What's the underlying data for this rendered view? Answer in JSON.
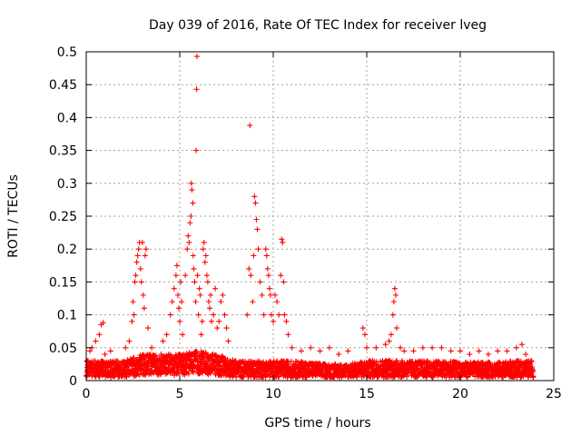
{
  "chart_data": {
    "type": "scatter",
    "title": "Day 039 of 2016, Rate Of TEC Index for receiver lveg",
    "xlabel": "GPS time / hours",
    "ylabel": "ROTI / TECUs",
    "xlim": [
      0,
      25
    ],
    "ylim": [
      0,
      0.5
    ],
    "grid": true,
    "marker": "+",
    "color": "#ff0000",
    "xticks": [
      "0",
      "5",
      "10",
      "15",
      "20",
      "25"
    ],
    "yticks": [
      "0",
      "0.05",
      "0.1",
      "0.15",
      "0.2",
      "0.25",
      "0.3",
      "0.35",
      "0.4",
      "0.45",
      "0.5"
    ],
    "series": [
      {
        "name": "ROTI",
        "points": [
          [
            0.1,
            0.03
          ],
          [
            0.2,
            0.045
          ],
          [
            0.3,
            0.05
          ],
          [
            0.5,
            0.06
          ],
          [
            0.7,
            0.07
          ],
          [
            0.8,
            0.085
          ],
          [
            0.9,
            0.088
          ],
          [
            1.0,
            0.04
          ],
          [
            1.3,
            0.045
          ],
          [
            2.1,
            0.05
          ],
          [
            2.3,
            0.06
          ],
          [
            2.45,
            0.09
          ],
          [
            2.5,
            0.12
          ],
          [
            2.55,
            0.1
          ],
          [
            2.6,
            0.15
          ],
          [
            2.65,
            0.16
          ],
          [
            2.7,
            0.18
          ],
          [
            2.75,
            0.19
          ],
          [
            2.8,
            0.2
          ],
          [
            2.85,
            0.21
          ],
          [
            2.9,
            0.17
          ],
          [
            2.95,
            0.15
          ],
          [
            3.0,
            0.21
          ],
          [
            3.05,
            0.13
          ],
          [
            3.1,
            0.11
          ],
          [
            3.15,
            0.19
          ],
          [
            3.2,
            0.2
          ],
          [
            3.3,
            0.08
          ],
          [
            3.5,
            0.05
          ],
          [
            4.1,
            0.06
          ],
          [
            4.3,
            0.07
          ],
          [
            4.5,
            0.1
          ],
          [
            4.6,
            0.12
          ],
          [
            4.7,
            0.14
          ],
          [
            4.8,
            0.16
          ],
          [
            4.85,
            0.175
          ],
          [
            4.9,
            0.13
          ],
          [
            4.95,
            0.11
          ],
          [
            5.0,
            0.09
          ],
          [
            5.05,
            0.15
          ],
          [
            5.1,
            0.12
          ],
          [
            5.15,
            0.07
          ],
          [
            5.3,
            0.16
          ],
          [
            5.4,
            0.2
          ],
          [
            5.45,
            0.22
          ],
          [
            5.5,
            0.21
          ],
          [
            5.55,
            0.24
          ],
          [
            5.6,
            0.25
          ],
          [
            5.62,
            0.3
          ],
          [
            5.65,
            0.29
          ],
          [
            5.7,
            0.27
          ],
          [
            5.72,
            0.19
          ],
          [
            5.75,
            0.17
          ],
          [
            5.8,
            0.15
          ],
          [
            5.85,
            0.12
          ],
          [
            5.88,
            0.35
          ],
          [
            5.9,
            0.443
          ],
          [
            5.92,
            0.493
          ],
          [
            5.95,
            0.16
          ],
          [
            6.0,
            0.1
          ],
          [
            6.05,
            0.14
          ],
          [
            6.1,
            0.13
          ],
          [
            6.15,
            0.07
          ],
          [
            6.2,
            0.09
          ],
          [
            6.25,
            0.2
          ],
          [
            6.3,
            0.21
          ],
          [
            6.35,
            0.18
          ],
          [
            6.4,
            0.19
          ],
          [
            6.45,
            0.16
          ],
          [
            6.5,
            0.15
          ],
          [
            6.55,
            0.12
          ],
          [
            6.6,
            0.11
          ],
          [
            6.65,
            0.13
          ],
          [
            6.7,
            0.09
          ],
          [
            6.8,
            0.1
          ],
          [
            6.9,
            0.14
          ],
          [
            7.0,
            0.08
          ],
          [
            7.1,
            0.09
          ],
          [
            7.2,
            0.12
          ],
          [
            7.3,
            0.13
          ],
          [
            7.4,
            0.1
          ],
          [
            7.5,
            0.08
          ],
          [
            7.6,
            0.06
          ],
          [
            8.6,
            0.1
          ],
          [
            8.7,
            0.17
          ],
          [
            8.75,
            0.388
          ],
          [
            8.8,
            0.16
          ],
          [
            8.9,
            0.12
          ],
          [
            8.95,
            0.19
          ],
          [
            9.0,
            0.28
          ],
          [
            9.05,
            0.27
          ],
          [
            9.1,
            0.245
          ],
          [
            9.15,
            0.23
          ],
          [
            9.2,
            0.2
          ],
          [
            9.3,
            0.15
          ],
          [
            9.4,
            0.13
          ],
          [
            9.5,
            0.1
          ],
          [
            9.6,
            0.2
          ],
          [
            9.65,
            0.19
          ],
          [
            9.7,
            0.17
          ],
          [
            9.75,
            0.16
          ],
          [
            9.8,
            0.14
          ],
          [
            9.85,
            0.13
          ],
          [
            9.9,
            0.1
          ],
          [
            10.0,
            0.09
          ],
          [
            10.1,
            0.13
          ],
          [
            10.2,
            0.12
          ],
          [
            10.3,
            0.1
          ],
          [
            10.4,
            0.16
          ],
          [
            10.45,
            0.215
          ],
          [
            10.5,
            0.21
          ],
          [
            10.55,
            0.15
          ],
          [
            10.6,
            0.1
          ],
          [
            10.7,
            0.09
          ],
          [
            10.8,
            0.07
          ],
          [
            11.0,
            0.05
          ],
          [
            11.5,
            0.045
          ],
          [
            12.0,
            0.05
          ],
          [
            12.5,
            0.045
          ],
          [
            13.0,
            0.05
          ],
          [
            13.5,
            0.04
          ],
          [
            14.0,
            0.045
          ],
          [
            14.8,
            0.08
          ],
          [
            14.9,
            0.07
          ],
          [
            15.0,
            0.05
          ],
          [
            15.5,
            0.05
          ],
          [
            16.0,
            0.055
          ],
          [
            16.2,
            0.06
          ],
          [
            16.3,
            0.07
          ],
          [
            16.4,
            0.1
          ],
          [
            16.45,
            0.12
          ],
          [
            16.5,
            0.14
          ],
          [
            16.55,
            0.13
          ],
          [
            16.6,
            0.08
          ],
          [
            16.8,
            0.05
          ],
          [
            17.0,
            0.045
          ],
          [
            17.5,
            0.045
          ],
          [
            18.0,
            0.05
          ],
          [
            18.5,
            0.05
          ],
          [
            19.0,
            0.05
          ],
          [
            19.5,
            0.045
          ],
          [
            20.0,
            0.045
          ],
          [
            20.5,
            0.04
          ],
          [
            21.0,
            0.045
          ],
          [
            21.5,
            0.04
          ],
          [
            22.0,
            0.045
          ],
          [
            22.5,
            0.045
          ],
          [
            23.0,
            0.05
          ],
          [
            23.3,
            0.055
          ],
          [
            23.5,
            0.04
          ],
          [
            23.8,
            0.03
          ]
        ],
        "baseline_envelope": {
          "hours": [
            0,
            1,
            2,
            3,
            4,
            5,
            6,
            7,
            8,
            9,
            10,
            11,
            12,
            13,
            14,
            15,
            16,
            17,
            18,
            19,
            20,
            21,
            22,
            23,
            23.9
          ],
          "low": [
            0.005,
            0.005,
            0.005,
            0.008,
            0.008,
            0.008,
            0.01,
            0.008,
            0.005,
            0.005,
            0.005,
            0.005,
            0.005,
            0.005,
            0.005,
            0.005,
            0.005,
            0.005,
            0.005,
            0.005,
            0.005,
            0.005,
            0.005,
            0.005,
            0.005
          ],
          "high": [
            0.03,
            0.03,
            0.03,
            0.04,
            0.04,
            0.04,
            0.045,
            0.04,
            0.03,
            0.03,
            0.03,
            0.03,
            0.028,
            0.025,
            0.025,
            0.03,
            0.032,
            0.03,
            0.03,
            0.03,
            0.028,
            0.028,
            0.028,
            0.03,
            0.03
          ]
        }
      }
    ]
  }
}
